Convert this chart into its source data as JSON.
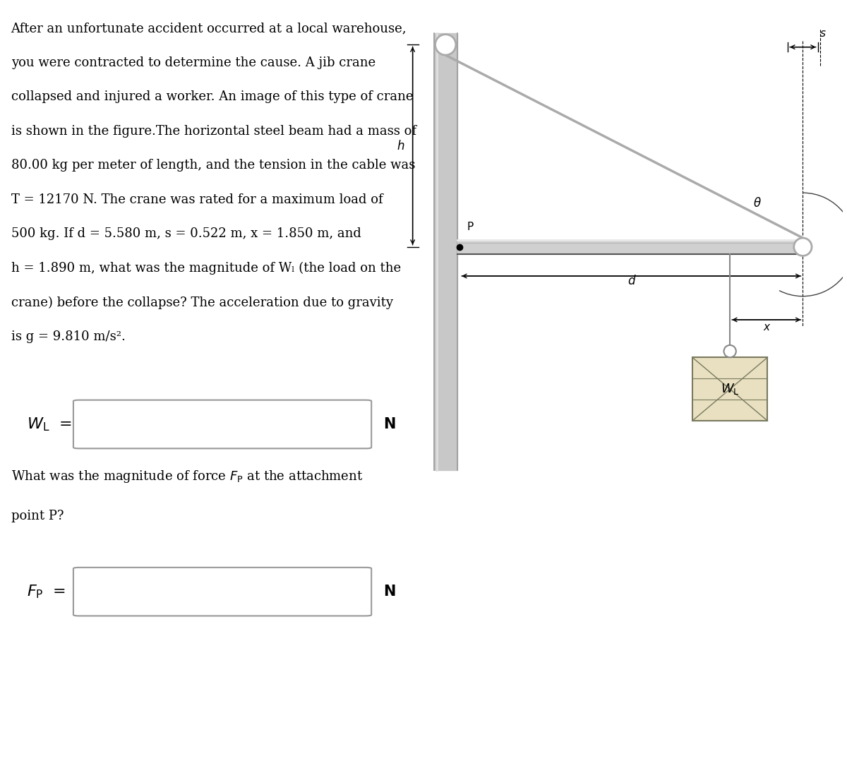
{
  "bg_color": "#ffffff",
  "text_color": "#000000",
  "beam_color": "#d0d0d0",
  "beam_highlight": "#e8e8e8",
  "beam_shadow": "#888888",
  "column_color": "#c8c8c8",
  "column_edge": "#999999",
  "cable_color": "#aaaaaa",
  "box_color": "#e8e0c0",
  "box_line_color": "#7a7a60",
  "dim_color": "#000000",
  "annotation_lw": 1.0,
  "problem_lines": [
    "After an unfortunate accident occurred at a local warehouse,",
    "you were contracted to determine the cause. A jib crane",
    "collapsed and injured a worker. An image of this type of crane",
    "is shown in the figure.The horizontal steel beam had a mass of",
    "80.00 kg per meter of length, and the tension in the cable was",
    "T = 12170 N. The crane was rated for a maximum load of",
    "500 kg. If d = 5.580 m, s = 0.522 m, x = 1.850 m, and",
    "h = 1.890 m, what was the magnitude of Wₗ (the load on the",
    "crane) before the collapse? The acceleration due to gravity",
    "is g = 9.810 m/s²."
  ],
  "fontsize_main": 13.0,
  "fontsize_label": 16.0,
  "fontsize_unit": 15.0
}
